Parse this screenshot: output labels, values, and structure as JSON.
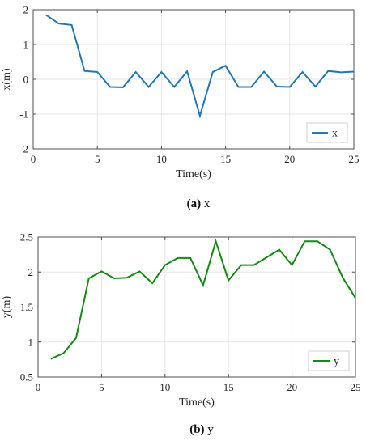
{
  "chart_data": [
    {
      "type": "line",
      "xlabel": "Time(s)",
      "ylabel": "x(m)",
      "xlim": [
        0,
        25
      ],
      "ylim": [
        -2,
        2
      ],
      "xticks": [
        0,
        5,
        10,
        15,
        20,
        25
      ],
      "yticks": [
        -2,
        -1,
        0,
        1,
        2
      ],
      "grid": true,
      "legend_position": "bottom-right",
      "caption_bold": "(a)",
      "caption_text": " x",
      "series": [
        {
          "name": "x",
          "color": "#1f77b4",
          "x": [
            1,
            2,
            3,
            4,
            5,
            6,
            7,
            8,
            9,
            10,
            11,
            12,
            13,
            14,
            15,
            16,
            17,
            18,
            19,
            20,
            21,
            22,
            23,
            24,
            25
          ],
          "y": [
            1.85,
            1.6,
            1.56,
            0.24,
            0.21,
            -0.22,
            -0.23,
            0.21,
            -0.22,
            0.21,
            -0.22,
            0.23,
            -1.05,
            0.21,
            0.39,
            -0.22,
            -0.22,
            0.22,
            -0.21,
            -0.22,
            0.21,
            -0.21,
            0.24,
            0.2,
            0.22
          ]
        }
      ]
    },
    {
      "type": "line",
      "xlabel": "Time(s)",
      "ylabel": "y(m)",
      "xlim": [
        0,
        25
      ],
      "ylim": [
        0.5,
        2.5
      ],
      "xticks": [
        0,
        5,
        10,
        15,
        20,
        25
      ],
      "yticks": [
        0.5,
        1,
        1.5,
        2,
        2.5
      ],
      "grid": true,
      "legend_position": "bottom-right",
      "caption_bold": "(b)",
      "caption_text": " y",
      "series": [
        {
          "name": "y",
          "color": "#138a13",
          "x": [
            1,
            2,
            3,
            4,
            5,
            6,
            7,
            8,
            9,
            10,
            11,
            12,
            13,
            14,
            15,
            16,
            17,
            18,
            19,
            20,
            21,
            22,
            23,
            24,
            25
          ],
          "y": [
            0.76,
            0.84,
            1.06,
            1.91,
            2.01,
            1.91,
            1.92,
            2.01,
            1.84,
            2.1,
            2.2,
            2.2,
            1.81,
            2.44,
            1.88,
            2.1,
            2.1,
            2.21,
            2.32,
            2.1,
            2.44,
            2.44,
            2.32,
            1.92,
            1.63
          ]
        }
      ]
    }
  ]
}
